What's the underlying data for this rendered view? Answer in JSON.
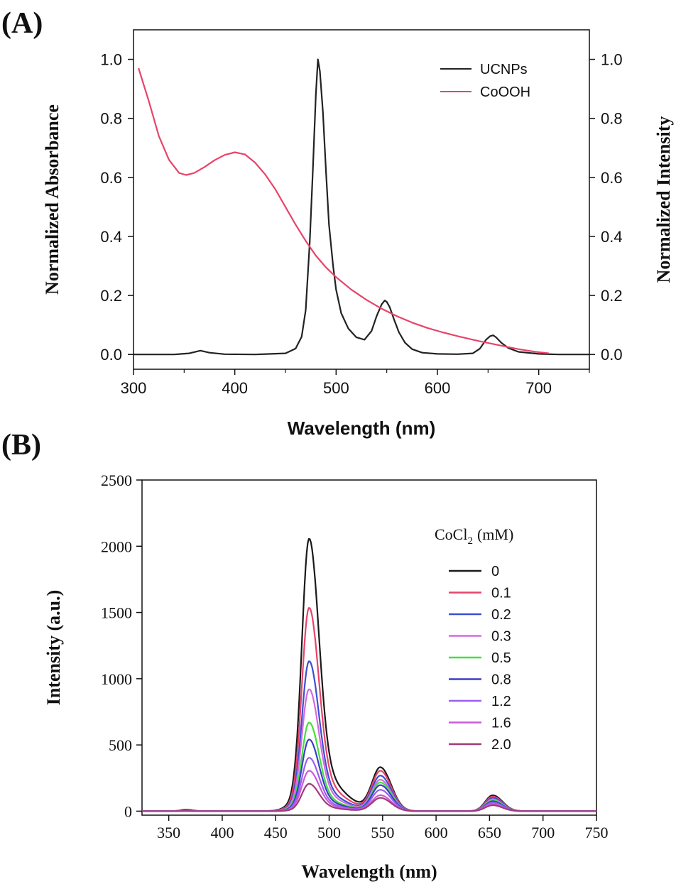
{
  "chart_data": [
    {
      "panel_label": "(A)",
      "type": "line",
      "xlabel": "Wavelength (nm)",
      "ylabel_left": "Normalized Absorbance",
      "ylabel_right": "Normalized Intensity",
      "xlim": [
        300,
        750
      ],
      "ylim": [
        -0.05,
        1.1
      ],
      "x_ticks": [
        300,
        400,
        500,
        600,
        700
      ],
      "y_ticks": [
        0.0,
        0.2,
        0.4,
        0.6,
        0.8,
        1.0
      ],
      "x_tick_labels": [
        "300",
        "400",
        "500",
        "600",
        "700"
      ],
      "y_tick_labels": [
        "0.0",
        "0.2",
        "0.4",
        "0.6",
        "0.8",
        "1.0"
      ],
      "legend_position": "top-right",
      "series": [
        {
          "name": "UCNPs",
          "color": "#222222",
          "axis": "right",
          "x": [
            300,
            340,
            355,
            366,
            375,
            390,
            420,
            450,
            460,
            466,
            470,
            474,
            477,
            480,
            482,
            484,
            487,
            490,
            493,
            497,
            500,
            505,
            512,
            520,
            528,
            535,
            540,
            545,
            548,
            550,
            553,
            557,
            562,
            568,
            575,
            585,
            600,
            620,
            635,
            642,
            648,
            652,
            655,
            658,
            663,
            670,
            680,
            700,
            720,
            750
          ],
          "y": [
            0.0,
            0.0,
            0.004,
            0.013,
            0.006,
            0.001,
            0.0,
            0.004,
            0.02,
            0.06,
            0.15,
            0.38,
            0.62,
            0.88,
            1.0,
            0.96,
            0.82,
            0.62,
            0.44,
            0.3,
            0.22,
            0.14,
            0.088,
            0.058,
            0.05,
            0.08,
            0.13,
            0.17,
            0.183,
            0.178,
            0.16,
            0.12,
            0.075,
            0.04,
            0.018,
            0.006,
            0.002,
            0.001,
            0.004,
            0.02,
            0.05,
            0.062,
            0.065,
            0.058,
            0.04,
            0.022,
            0.009,
            0.002,
            0.0,
            0.0
          ]
        },
        {
          "name": "CoOOH",
          "color": "#e8436a",
          "axis": "left",
          "x": [
            305,
            315,
            325,
            335,
            345,
            352,
            360,
            370,
            380,
            390,
            400,
            410,
            420,
            430,
            440,
            450,
            460,
            470,
            480,
            490,
            500,
            515,
            530,
            545,
            560,
            575,
            590,
            605,
            620,
            640,
            660,
            680,
            695,
            710
          ],
          "y": [
            0.97,
            0.86,
            0.74,
            0.66,
            0.615,
            0.608,
            0.615,
            0.635,
            0.658,
            0.676,
            0.685,
            0.678,
            0.65,
            0.61,
            0.56,
            0.5,
            0.44,
            0.385,
            0.335,
            0.295,
            0.262,
            0.22,
            0.185,
            0.155,
            0.13,
            0.108,
            0.09,
            0.075,
            0.062,
            0.046,
            0.032,
            0.018,
            0.01,
            0.004
          ]
        }
      ]
    },
    {
      "panel_label": "(B)",
      "type": "line",
      "xlabel": "Wavelength (nm)",
      "ylabel": "Intensity (a.u.)",
      "xlim": [
        325,
        750
      ],
      "ylim": [
        -30,
        2500
      ],
      "x_ticks": [
        350,
        400,
        450,
        500,
        550,
        600,
        650,
        700,
        750
      ],
      "y_ticks": [
        0,
        500,
        1000,
        1500,
        2000,
        2500
      ],
      "x_tick_labels": [
        "350",
        "400",
        "450",
        "500",
        "550",
        "600",
        "650",
        "700",
        "750"
      ],
      "y_tick_labels": [
        "0",
        "500",
        "1000",
        "1500",
        "2000",
        "2500"
      ],
      "legend_title": "CoCl",
      "legend_title_subscript": "2",
      "legend_title_unit": "(mM)",
      "legend_position": "right",
      "series": [
        {
          "name": "0",
          "color": "#1a1a1a",
          "peak480": 2090,
          "peak550": 325,
          "peak655": 120
        },
        {
          "name": "0.1",
          "color": "#e8436a",
          "peak480": 1560,
          "peak550": 300,
          "peak655": 110
        },
        {
          "name": "0.2",
          "color": "#3d4fd6",
          "peak480": 1150,
          "peak550": 265,
          "peak655": 100
        },
        {
          "name": "0.3",
          "color": "#d46ae0",
          "peak480": 935,
          "peak550": 235,
          "peak655": 90
        },
        {
          "name": "0.5",
          "color": "#44e03a",
          "peak480": 680,
          "peak550": 215,
          "peak655": 82
        },
        {
          "name": "0.8",
          "color": "#3a3ec8",
          "peak480": 550,
          "peak550": 195,
          "peak655": 75
        },
        {
          "name": "1.2",
          "color": "#9a5ef0",
          "peak480": 410,
          "peak550": 160,
          "peak655": 65
        },
        {
          "name": "1.6",
          "color": "#c95ad8",
          "peak480": 310,
          "peak550": 120,
          "peak655": 55
        },
        {
          "name": "2.0",
          "color": "#a03a7a",
          "peak480": 210,
          "peak550": 100,
          "peak655": 45
        }
      ]
    }
  ]
}
